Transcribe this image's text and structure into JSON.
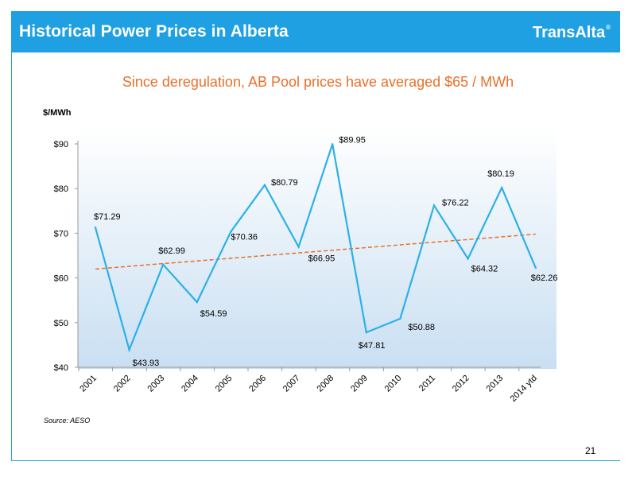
{
  "header": {
    "title": "Historical Power Prices in Alberta",
    "logo_text": "TransAlta",
    "logo_mark": "®"
  },
  "subtitle": "Since deregulation, AB Pool prices have averaged $65 / MWh",
  "footer": {
    "source": "Source: AESO",
    "page_number": "21"
  },
  "colors": {
    "brand_blue": "#1fa0e2",
    "series_line": "#2bb0e8",
    "trend_line": "#e8702a",
    "subtitle": "#e8702a"
  },
  "chart_data": {
    "type": "line",
    "title": "",
    "ylabel": "$/MWh",
    "xlabel": "",
    "ylim": [
      40,
      90
    ],
    "y_ticks": [
      40,
      50,
      60,
      70,
      80,
      90
    ],
    "y_tick_labels": [
      "$40",
      "$50",
      "$60",
      "$70",
      "$80",
      "$90"
    ],
    "categories": [
      "2001",
      "2002",
      "2003",
      "2004",
      "2005",
      "2006",
      "2007",
      "2008",
      "2009",
      "2010",
      "2011",
      "2012",
      "2013",
      "2014 ytd"
    ],
    "series": [
      {
        "values": [
          71.29,
          43.93,
          62.99,
          54.59,
          70.36,
          80.79,
          66.95,
          89.95,
          47.81,
          50.88,
          76.22,
          64.32,
          80.19,
          62.26
        ],
        "data_labels": [
          "$71.29",
          "$43.93",
          "$62.99",
          "$54.59",
          "$70.36",
          "$80.79",
          "$66.95",
          "$89.95",
          "$47.81",
          "$50.88",
          "$76.22",
          "$64.32",
          "$80.19",
          "$62.26"
        ]
      }
    ],
    "trendline": {
      "style": "dashed",
      "start": 62.0,
      "end": 69.8
    },
    "grid": false,
    "legend": "none",
    "background": "gradient (white top to light blue bottom)"
  }
}
